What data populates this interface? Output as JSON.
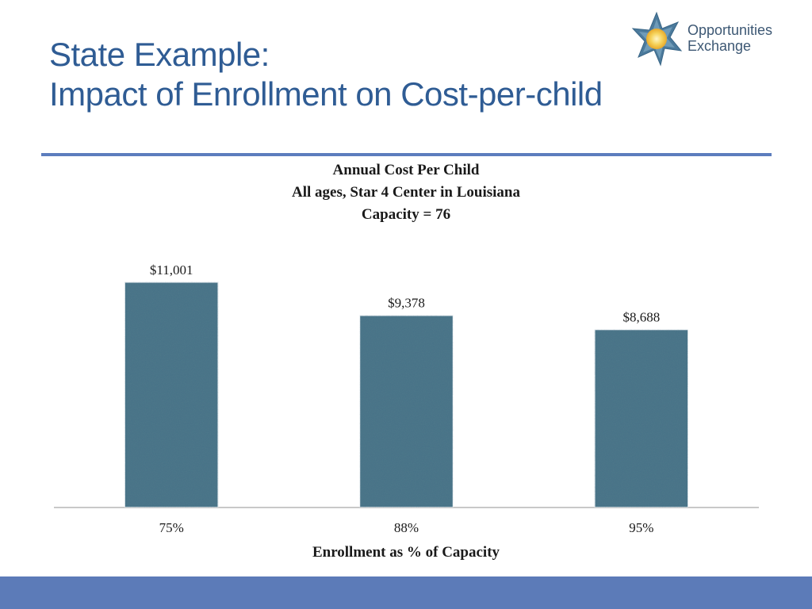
{
  "slide": {
    "title_line1": "State Example:",
    "title_line2": "Impact of Enrollment on Cost-per-child"
  },
  "logo": {
    "line1": "Opportunities",
    "line2": "Exchange"
  },
  "colors": {
    "title": "#2f5c94",
    "rule": "#5c7dbd",
    "bar": "#4a7388",
    "footer": "#5c7bb8"
  },
  "chart_data": {
    "type": "bar",
    "title": "Annual Cost Per Child",
    "subtitle_lines": [
      "All ages, Star 4 Center in Louisiana",
      "Capacity = 76"
    ],
    "categories": [
      "75%",
      "88%",
      "95%"
    ],
    "values": [
      11001,
      9378,
      8688
    ],
    "data_labels": [
      "$11,001",
      "$9,378",
      "$8,688"
    ],
    "xlabel": "Enrollment as % of Capacity",
    "ylabel": "",
    "ylim": [
      0,
      12000
    ],
    "grid": false,
    "legend": "none"
  }
}
